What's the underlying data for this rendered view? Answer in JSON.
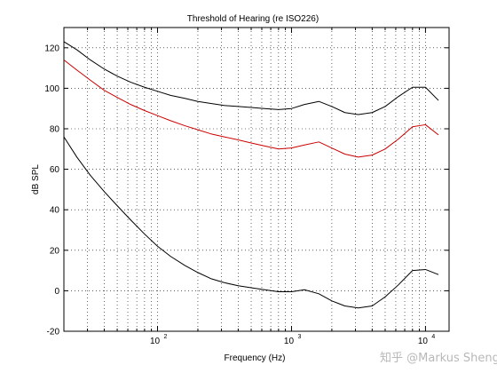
{
  "chart_data": {
    "type": "line",
    "title": "Threshold of Hearing (re ISO226)",
    "xlabel": "Frequency (Hz)",
    "ylabel": "dB SPL",
    "xscale": "log",
    "xlim": [
      20,
      15000
    ],
    "ylim": [
      -20,
      130
    ],
    "yticks": [
      -20,
      0,
      20,
      40,
      60,
      80,
      100,
      120
    ],
    "xticks": [
      {
        "value": 100,
        "base": "10",
        "exp": "2"
      },
      {
        "value": 1000,
        "base": "10",
        "exp": "3"
      },
      {
        "value": 10000,
        "base": "10",
        "exp": "4"
      }
    ],
    "grid": true,
    "series": [
      {
        "color": "#000000",
        "points": [
          [
            20,
            123
          ],
          [
            25,
            119
          ],
          [
            31.5,
            114
          ],
          [
            40,
            109.5
          ],
          [
            50,
            106
          ],
          [
            63,
            103
          ],
          [
            80,
            100.5
          ],
          [
            100,
            98.5
          ],
          [
            125,
            96.5
          ],
          [
            160,
            95
          ],
          [
            200,
            93.5
          ],
          [
            250,
            92.5
          ],
          [
            315,
            91.5
          ],
          [
            400,
            91
          ],
          [
            500,
            90.5
          ],
          [
            630,
            90
          ],
          [
            800,
            89.5
          ],
          [
            1000,
            90
          ],
          [
            1250,
            92
          ],
          [
            1600,
            93.5
          ],
          [
            2000,
            91
          ],
          [
            2500,
            88
          ],
          [
            3150,
            87
          ],
          [
            4000,
            88
          ],
          [
            5000,
            91
          ],
          [
            6300,
            96
          ],
          [
            8000,
            100.5
          ],
          [
            10000,
            100.5
          ],
          [
            12500,
            94
          ]
        ]
      },
      {
        "color": "#cc0000",
        "points": [
          [
            20,
            114
          ],
          [
            25,
            109
          ],
          [
            31.5,
            104
          ],
          [
            40,
            99
          ],
          [
            50,
            95.5
          ],
          [
            63,
            92
          ],
          [
            80,
            89
          ],
          [
            100,
            86.5
          ],
          [
            125,
            84
          ],
          [
            160,
            81.5
          ],
          [
            200,
            79.5
          ],
          [
            250,
            77.5
          ],
          [
            315,
            76
          ],
          [
            400,
            74.5
          ],
          [
            500,
            73
          ],
          [
            630,
            71.5
          ],
          [
            800,
            70
          ],
          [
            1000,
            70.5
          ],
          [
            1250,
            72
          ],
          [
            1600,
            73.5
          ],
          [
            2000,
            70.5
          ],
          [
            2500,
            67.5
          ],
          [
            3150,
            66
          ],
          [
            4000,
            67
          ],
          [
            5000,
            70
          ],
          [
            6300,
            75
          ],
          [
            8000,
            81
          ],
          [
            10000,
            82
          ],
          [
            12500,
            77
          ]
        ]
      },
      {
        "color": "#000000",
        "points": [
          [
            20,
            76
          ],
          [
            25,
            66
          ],
          [
            31.5,
            57
          ],
          [
            40,
            49
          ],
          [
            50,
            42
          ],
          [
            63,
            35
          ],
          [
            80,
            28
          ],
          [
            100,
            22
          ],
          [
            125,
            17
          ],
          [
            160,
            12.5
          ],
          [
            200,
            9
          ],
          [
            250,
            6
          ],
          [
            315,
            4
          ],
          [
            400,
            2.5
          ],
          [
            500,
            1.5
          ],
          [
            630,
            0.5
          ],
          [
            800,
            -0.5
          ],
          [
            1000,
            -0.5
          ],
          [
            1250,
            0.5
          ],
          [
            1600,
            -1.5
          ],
          [
            2000,
            -5
          ],
          [
            2500,
            -7.5
          ],
          [
            3150,
            -8.5
          ],
          [
            4000,
            -7.5
          ],
          [
            5000,
            -3
          ],
          [
            6300,
            3
          ],
          [
            8000,
            10
          ],
          [
            10000,
            10.5
          ],
          [
            12500,
            8
          ]
        ]
      }
    ]
  },
  "watermark": "知乎 @Markus Sheng"
}
